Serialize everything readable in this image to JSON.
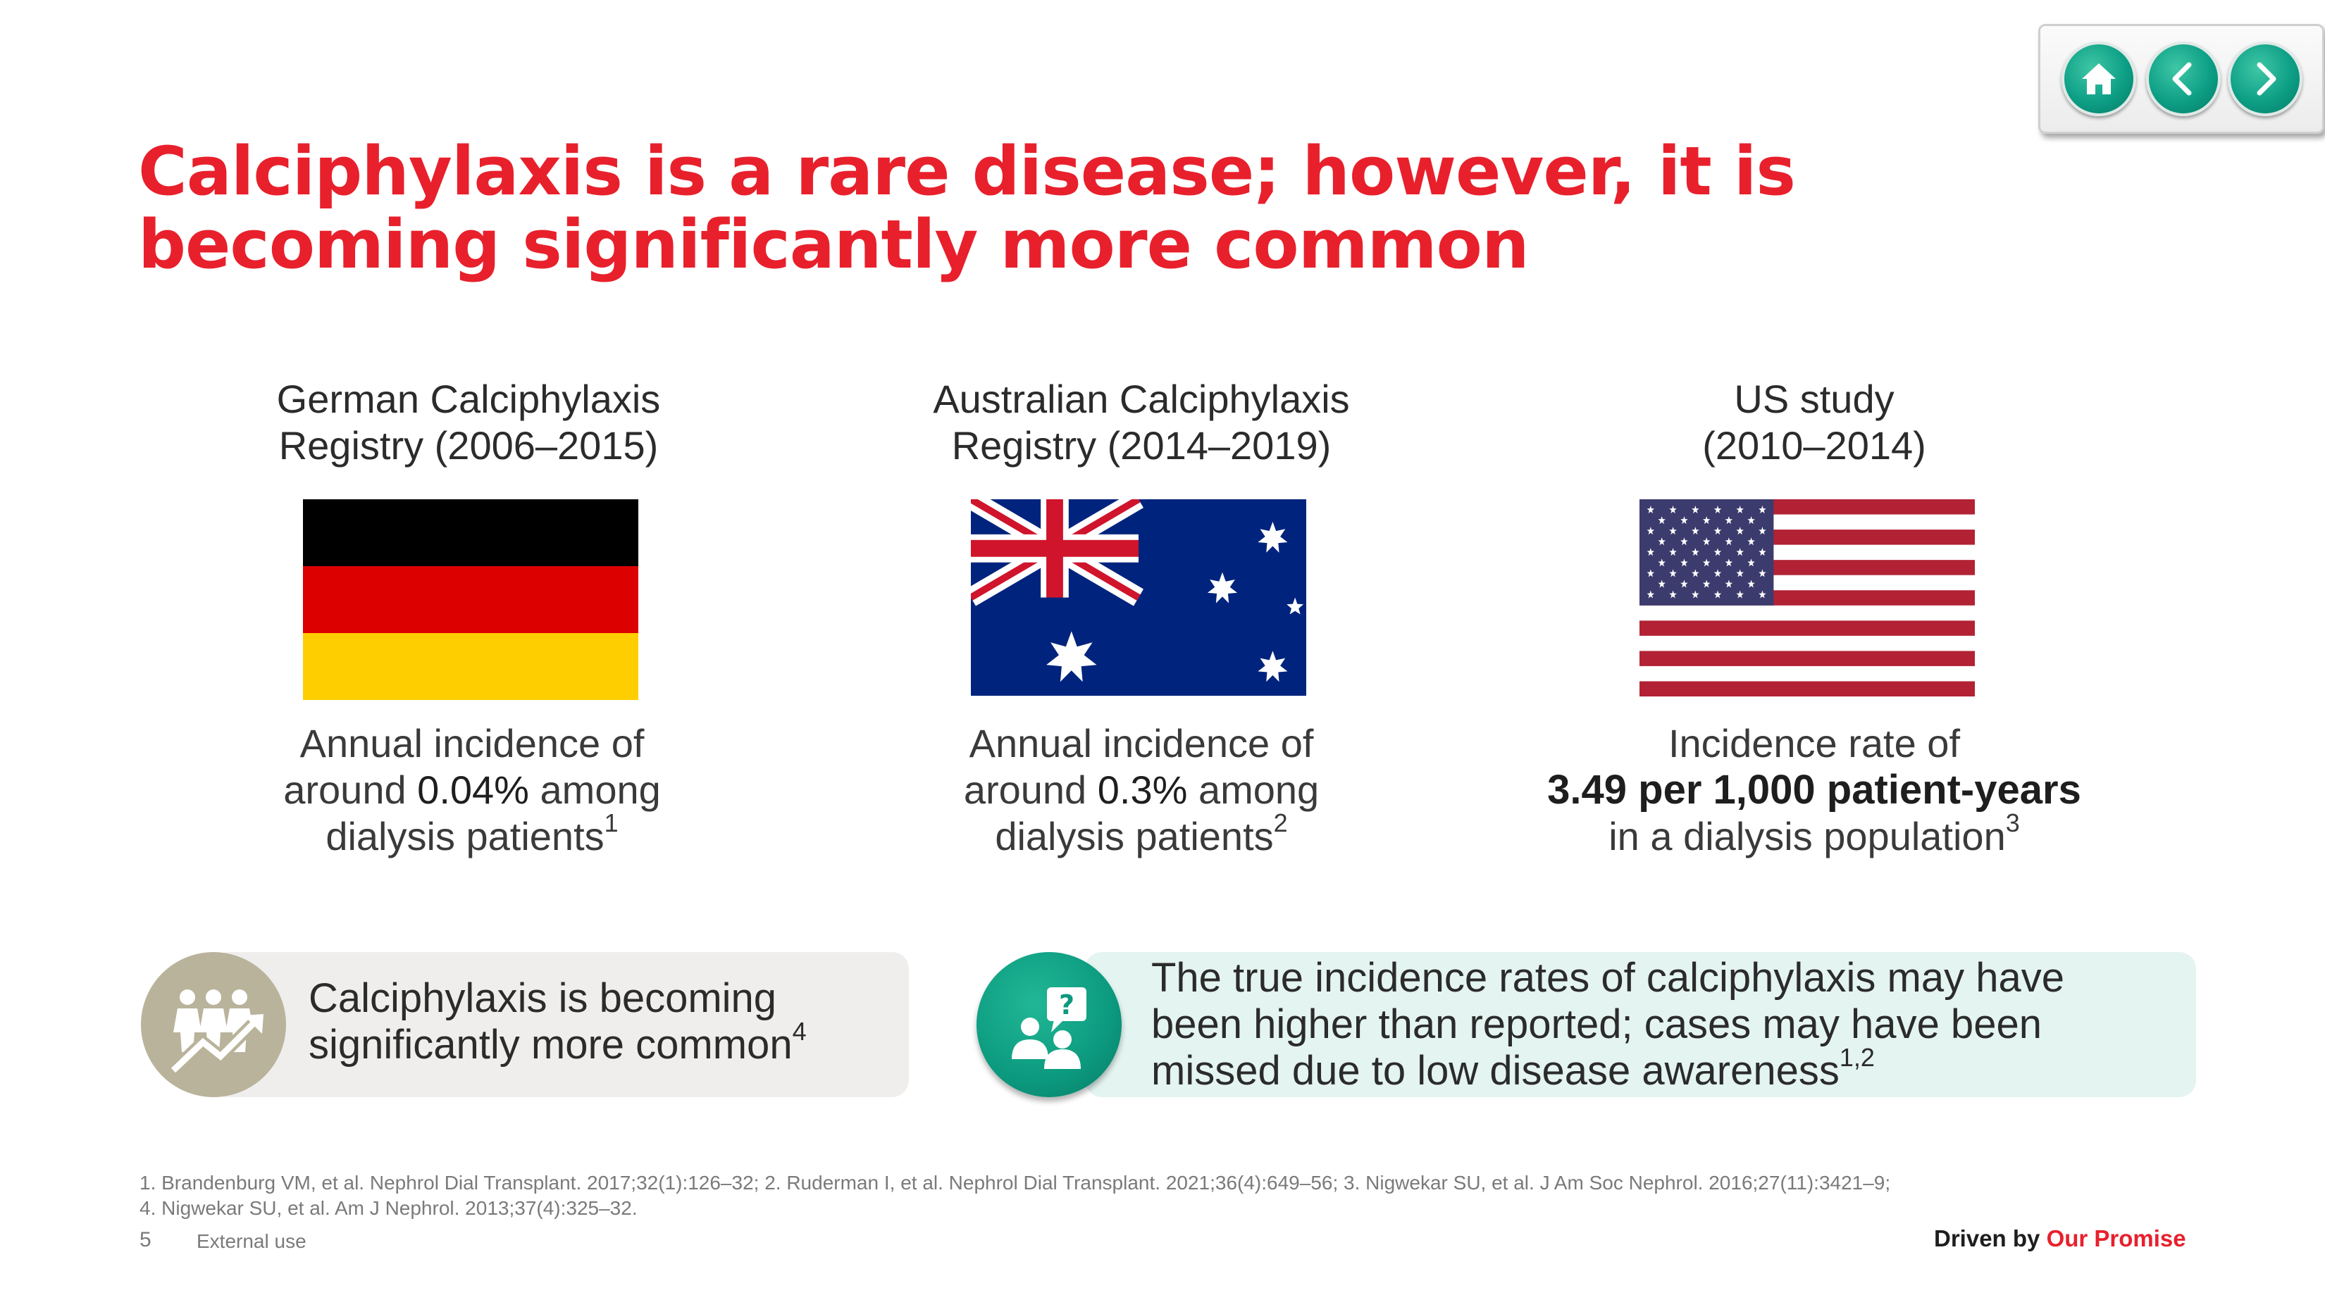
{
  "nav": {
    "home_icon": "home-icon",
    "prev_icon": "chevron-left-icon",
    "next_icon": "chevron-right-icon"
  },
  "title": "Calciphylaxis is a rare disease; however, it is becoming significantly more common",
  "columns": [
    {
      "heading_line1": "German Calciphylaxis",
      "heading_line2": "Registry (2006–2015)",
      "flag": "germany-flag",
      "desc_line1": "Annual incidence of",
      "desc_pre": "around ",
      "desc_value": "0.04%",
      "desc_post": " among",
      "desc_line3": "dialysis patients",
      "ref": "1"
    },
    {
      "heading_line1": "Australian Calciphylaxis",
      "heading_line2": "Registry (2014–2019)",
      "flag": "australia-flag",
      "desc_line1": "Annual incidence of",
      "desc_pre": "around ",
      "desc_value": "0.3%",
      "desc_post": " among",
      "desc_line3": "dialysis patients",
      "ref": "2"
    },
    {
      "heading_line1": "US study",
      "heading_line2": "(2010–2014)",
      "flag": "usa-flag",
      "desc_line1": "Incidence rate of",
      "desc_value": "3.49 per 1,000 patient-years",
      "desc_line3": "in a dialysis population",
      "ref": "3"
    }
  ],
  "callouts": {
    "left": {
      "icon": "people-growth-icon",
      "line1": "Calciphylaxis is becoming",
      "line2": "significantly more common",
      "ref": "4"
    },
    "right": {
      "icon": "question-people-icon",
      "line1": "The true incidence rates of calciphylaxis may have",
      "line2": "been higher than reported; cases may have been",
      "line3": "missed due to low disease awareness",
      "ref": "1,2"
    }
  },
  "references": {
    "line1": "1. Brandenburg VM, et al. Nephrol Dial Transplant. 2017;32(1):126–32; 2. Ruderman I, et al. Nephrol Dial Transplant. 2021;36(4):649–56; 3. Nigwekar SU, et al. J Am Soc Nephrol. 2016;27(11):3421–9;",
    "line2": "4. Nigwekar SU, et al. Am J Nephrol. 2013;37(4):325–32."
  },
  "footer": {
    "page_number": "5",
    "external_use": "External use",
    "tagline_prefix": "Driven by ",
    "tagline_highlight": "Our Promise"
  },
  "colors": {
    "title_red": "#e8202c",
    "teal": "#0c9a7f",
    "taupe": "#b9b39b"
  }
}
